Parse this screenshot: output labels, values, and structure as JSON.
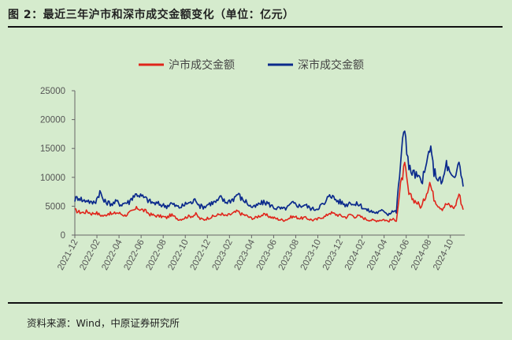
{
  "figure": {
    "title": "图 2：最近三年沪市和深市成交金额变化（单位：亿元）",
    "source": "资料来源：Wind，中原证券研究所"
  },
  "colors": {
    "sh": "#e0251b",
    "sz": "#0b2a8c",
    "background": "#d5ebcd",
    "axis": "#666666"
  },
  "chart_data": {
    "type": "line",
    "title": "",
    "xlabel": "",
    "ylabel": "",
    "ylim": [
      0,
      25000
    ],
    "yticks": [
      "0",
      "5000",
      "10000",
      "15000",
      "20000",
      "25000"
    ],
    "xticks": [
      "2021-12",
      "2022-02",
      "2022-04",
      "2022-06",
      "2022-08",
      "2022-10",
      "2022-12",
      "2023-02",
      "2023-04",
      "2023-06",
      "2023-08",
      "2023-10",
      "2023-12",
      "2024-02",
      "2024-04",
      "2024-06",
      "2024-08",
      "2024-10"
    ],
    "legend": "top",
    "series": [
      {
        "name": "沪市成交金额",
        "color": "#e0251b",
        "values": [
          4300,
          4000,
          3900,
          4100,
          3700,
          3900,
          3500,
          3300,
          3800,
          3600,
          3900,
          3700,
          3400,
          3800,
          4200,
          4700,
          4400,
          4100,
          3600,
          3400,
          3300,
          3200,
          3000,
          3500,
          3100,
          2700,
          2900,
          3200,
          3300,
          3600,
          2800,
          2700,
          3000,
          3200,
          3400,
          3700,
          3300,
          3500,
          3800,
          4100,
          3600,
          3400,
          3000,
          2900,
          3300,
          3500,
          3400,
          3100,
          2900,
          2700,
          2600,
          2800,
          3200,
          3100,
          2900,
          3000,
          2800,
          2600,
          2700,
          3100,
          3200,
          3900,
          3700,
          3500,
          3300,
          3100,
          3600,
          3200,
          3300,
          3000,
          2700,
          2600,
          2500,
          2600,
          2700,
          2400,
          2700,
          2600,
          8500,
          12000,
          7000,
          6200,
          5600,
          4800,
          6800,
          9200,
          6400,
          5200,
          4600,
          5400,
          5000,
          4800,
          7200,
          4400
        ]
      },
      {
        "name": "深市成交金额",
        "color": "#0b2a8c",
        "values": [
          6200,
          6600,
          5900,
          6100,
          5500,
          5900,
          7500,
          5800,
          5600,
          5400,
          5800,
          5300,
          5600,
          5700,
          6800,
          7100,
          6700,
          6300,
          5800,
          5500,
          5400,
          5200,
          5000,
          5500,
          5100,
          4800,
          5100,
          5600,
          5600,
          6200,
          5000,
          4900,
          5400,
          5600,
          5800,
          6500,
          5700,
          5900,
          6300,
          7200,
          6200,
          5800,
          5000,
          4800,
          5300,
          5600,
          5600,
          5100,
          4700,
          4600,
          4500,
          4800,
          5500,
          5300,
          5000,
          5300,
          4800,
          4500,
          4600,
          5200,
          5400,
          7300,
          6400,
          5900,
          5600,
          5200,
          5800,
          5200,
          5400,
          4800,
          4300,
          4100,
          3900,
          4000,
          4300,
          3600,
          4200,
          4000,
          12500,
          19000,
          11500,
          10800,
          10100,
          9200,
          11200,
          15400,
          11100,
          9800,
          9000,
          12400,
          10200,
          9400,
          13000,
          8400
        ]
      }
    ]
  }
}
